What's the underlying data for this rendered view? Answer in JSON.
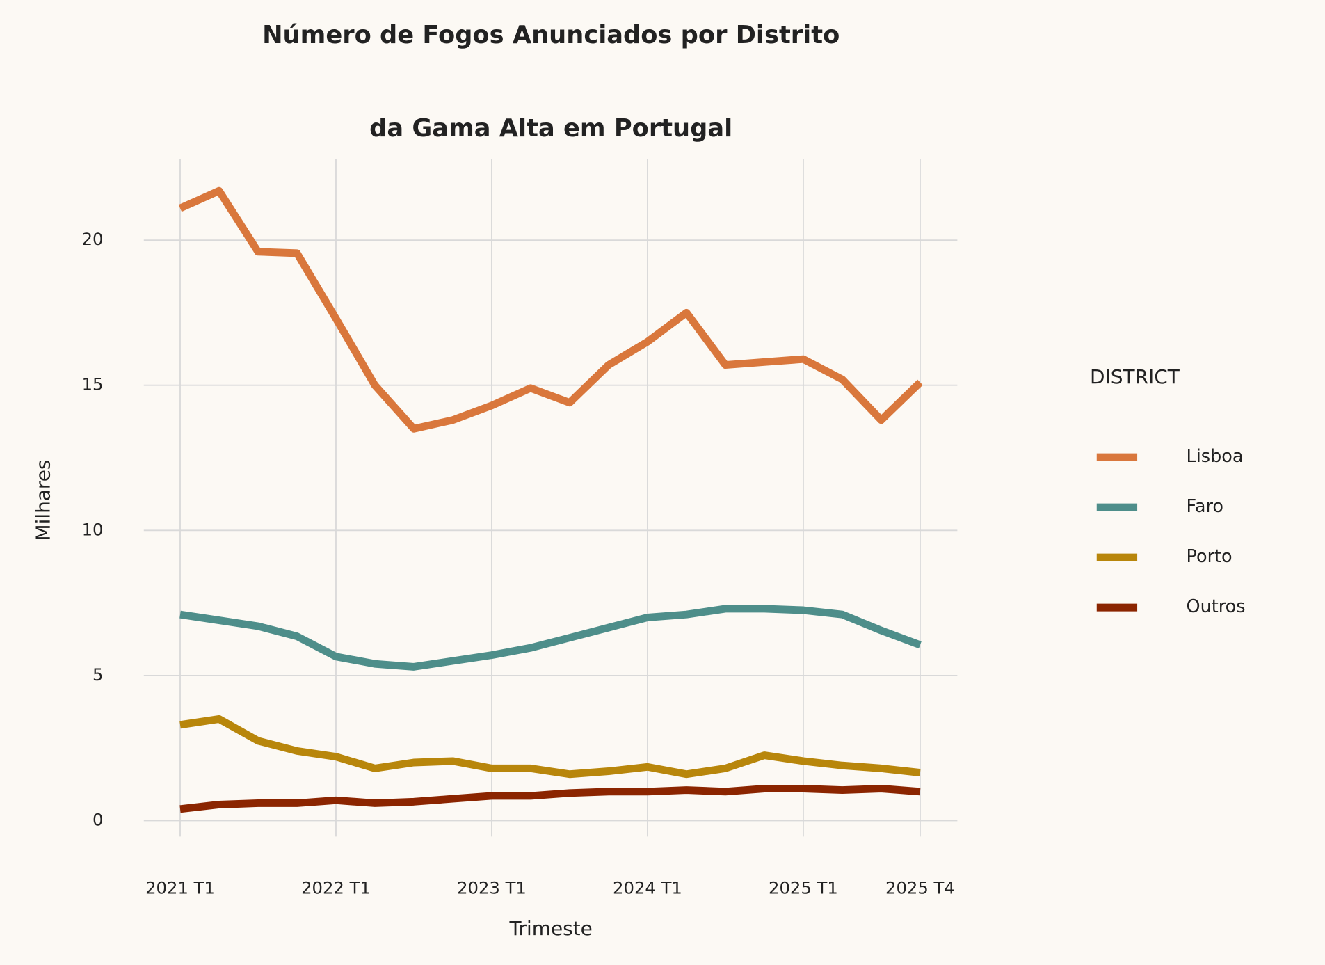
{
  "chart_data": {
    "type": "line",
    "title": [
      "Número de Fogos Anunciados por Distrito",
      "da Gama Alta em Portugal"
    ],
    "x_label": "Trimeste",
    "y_label": "Milhares",
    "legend_title": "DISTRICT",
    "legend_position": "right",
    "grid": true,
    "categories": [
      "2021 T1",
      null,
      null,
      null,
      "2022 T1",
      null,
      null,
      null,
      "2023 T1",
      null,
      null,
      null,
      "2024 T1",
      null,
      null,
      null,
      "2025 T1",
      null,
      null,
      "2025 T4"
    ],
    "ylim": [
      -0.55,
      22.8
    ],
    "yticks": [
      0,
      5,
      10,
      15,
      20
    ],
    "series": [
      {
        "name": "Lisboa",
        "color": "#d9773c",
        "values": [
          21.1,
          21.7,
          19.6,
          19.55,
          17.3,
          15.0,
          13.5,
          13.8,
          14.3,
          14.9,
          14.4,
          15.7,
          16.5,
          17.5,
          15.7,
          15.8,
          15.9,
          15.2,
          13.8,
          15.1
        ]
      },
      {
        "name": "Faro",
        "color": "#4e8e8a",
        "values": [
          7.1,
          6.9,
          6.7,
          6.35,
          5.65,
          5.4,
          5.3,
          5.5,
          5.7,
          5.95,
          6.3,
          6.65,
          7.0,
          7.1,
          7.3,
          7.3,
          7.25,
          7.1,
          6.55,
          6.05
        ]
      },
      {
        "name": "Porto",
        "color": "#b8860b",
        "values": [
          3.3,
          3.5,
          2.75,
          2.4,
          2.2,
          1.8,
          2.0,
          2.05,
          1.8,
          1.8,
          1.6,
          1.7,
          1.85,
          1.6,
          1.8,
          2.25,
          2.05,
          1.9,
          1.8,
          1.65
        ]
      },
      {
        "name": "Outros",
        "color": "#8b2500",
        "values": [
          0.4,
          0.55,
          0.6,
          0.6,
          0.7,
          0.6,
          0.65,
          0.75,
          0.85,
          0.85,
          0.95,
          1.0,
          1.0,
          1.05,
          1.0,
          1.1,
          1.1,
          1.05,
          1.1,
          1.0
        ]
      }
    ]
  }
}
